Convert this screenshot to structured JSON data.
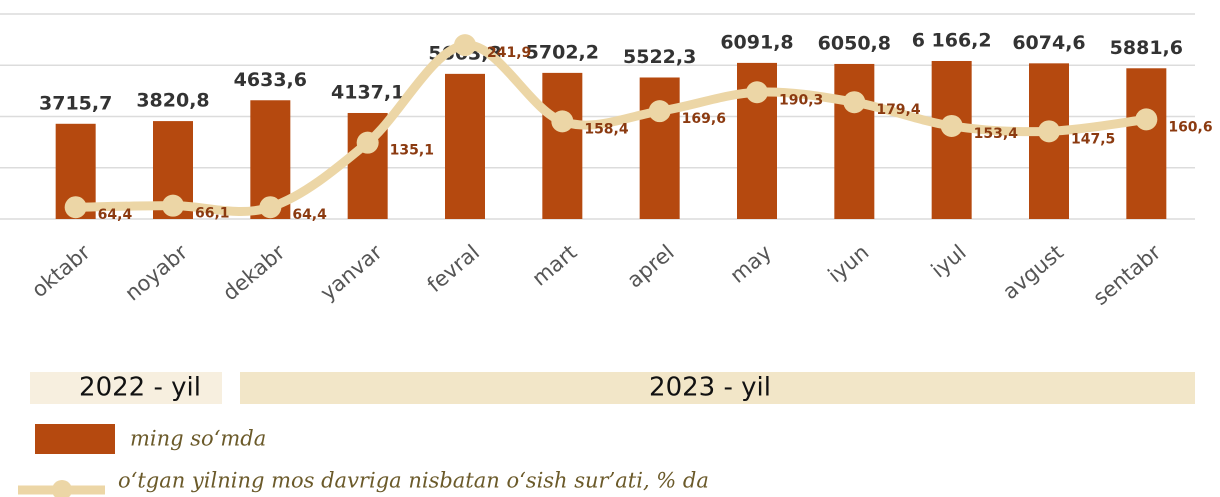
{
  "chart_data": {
    "type": "bar",
    "categories": [
      "oktabr",
      "noyabr",
      "dekabr",
      "yanvar",
      "fevral",
      "mart",
      "aprel",
      "may",
      "iyun",
      "iyul",
      "avgust",
      "sentabr"
    ],
    "series": [
      {
        "name": "ming so‘mda",
        "type": "bar",
        "color": "#b5490f",
        "values": [
          3715.7,
          3820.8,
          4633.6,
          4137.1,
          5663.8,
          5702.2,
          5522.3,
          6091.8,
          6050.8,
          6166.2,
          6074.6,
          5881.6
        ],
        "value_labels": [
          "3715,7",
          "3820,8",
          "4633,6",
          "4137,1",
          "5663,8",
          "5702,2",
          "5522,3",
          "6091,8",
          "6050,8",
          "6 166,2",
          "6074,6",
          "5881,6"
        ]
      },
      {
        "name": "o‘tgan yilning mos davriga nisbatan o‘sish sur’ati, % da",
        "type": "line",
        "axis": "y2",
        "color": "#ecd6a6",
        "values": [
          64.4,
          66.1,
          64.4,
          135.1,
          241.9,
          158.4,
          169.6,
          190.3,
          179.4,
          153.4,
          147.5,
          160.6
        ],
        "value_labels": [
          "64,4",
          "66,1",
          "64,4",
          "135,1",
          "241,9",
          "158,4",
          "169,6",
          "190,3",
          "179,4",
          "153,4",
          "147,5",
          "160,6"
        ]
      }
    ],
    "ylim": [
      0,
      8000
    ],
    "yticks": [
      0,
      2000,
      4000,
      6000,
      8000
    ],
    "y2lim": [
      51.5,
      276
    ],
    "grid": true,
    "annotations": [
      "2022 - yil",
      "2023 - yil"
    ]
  }
}
